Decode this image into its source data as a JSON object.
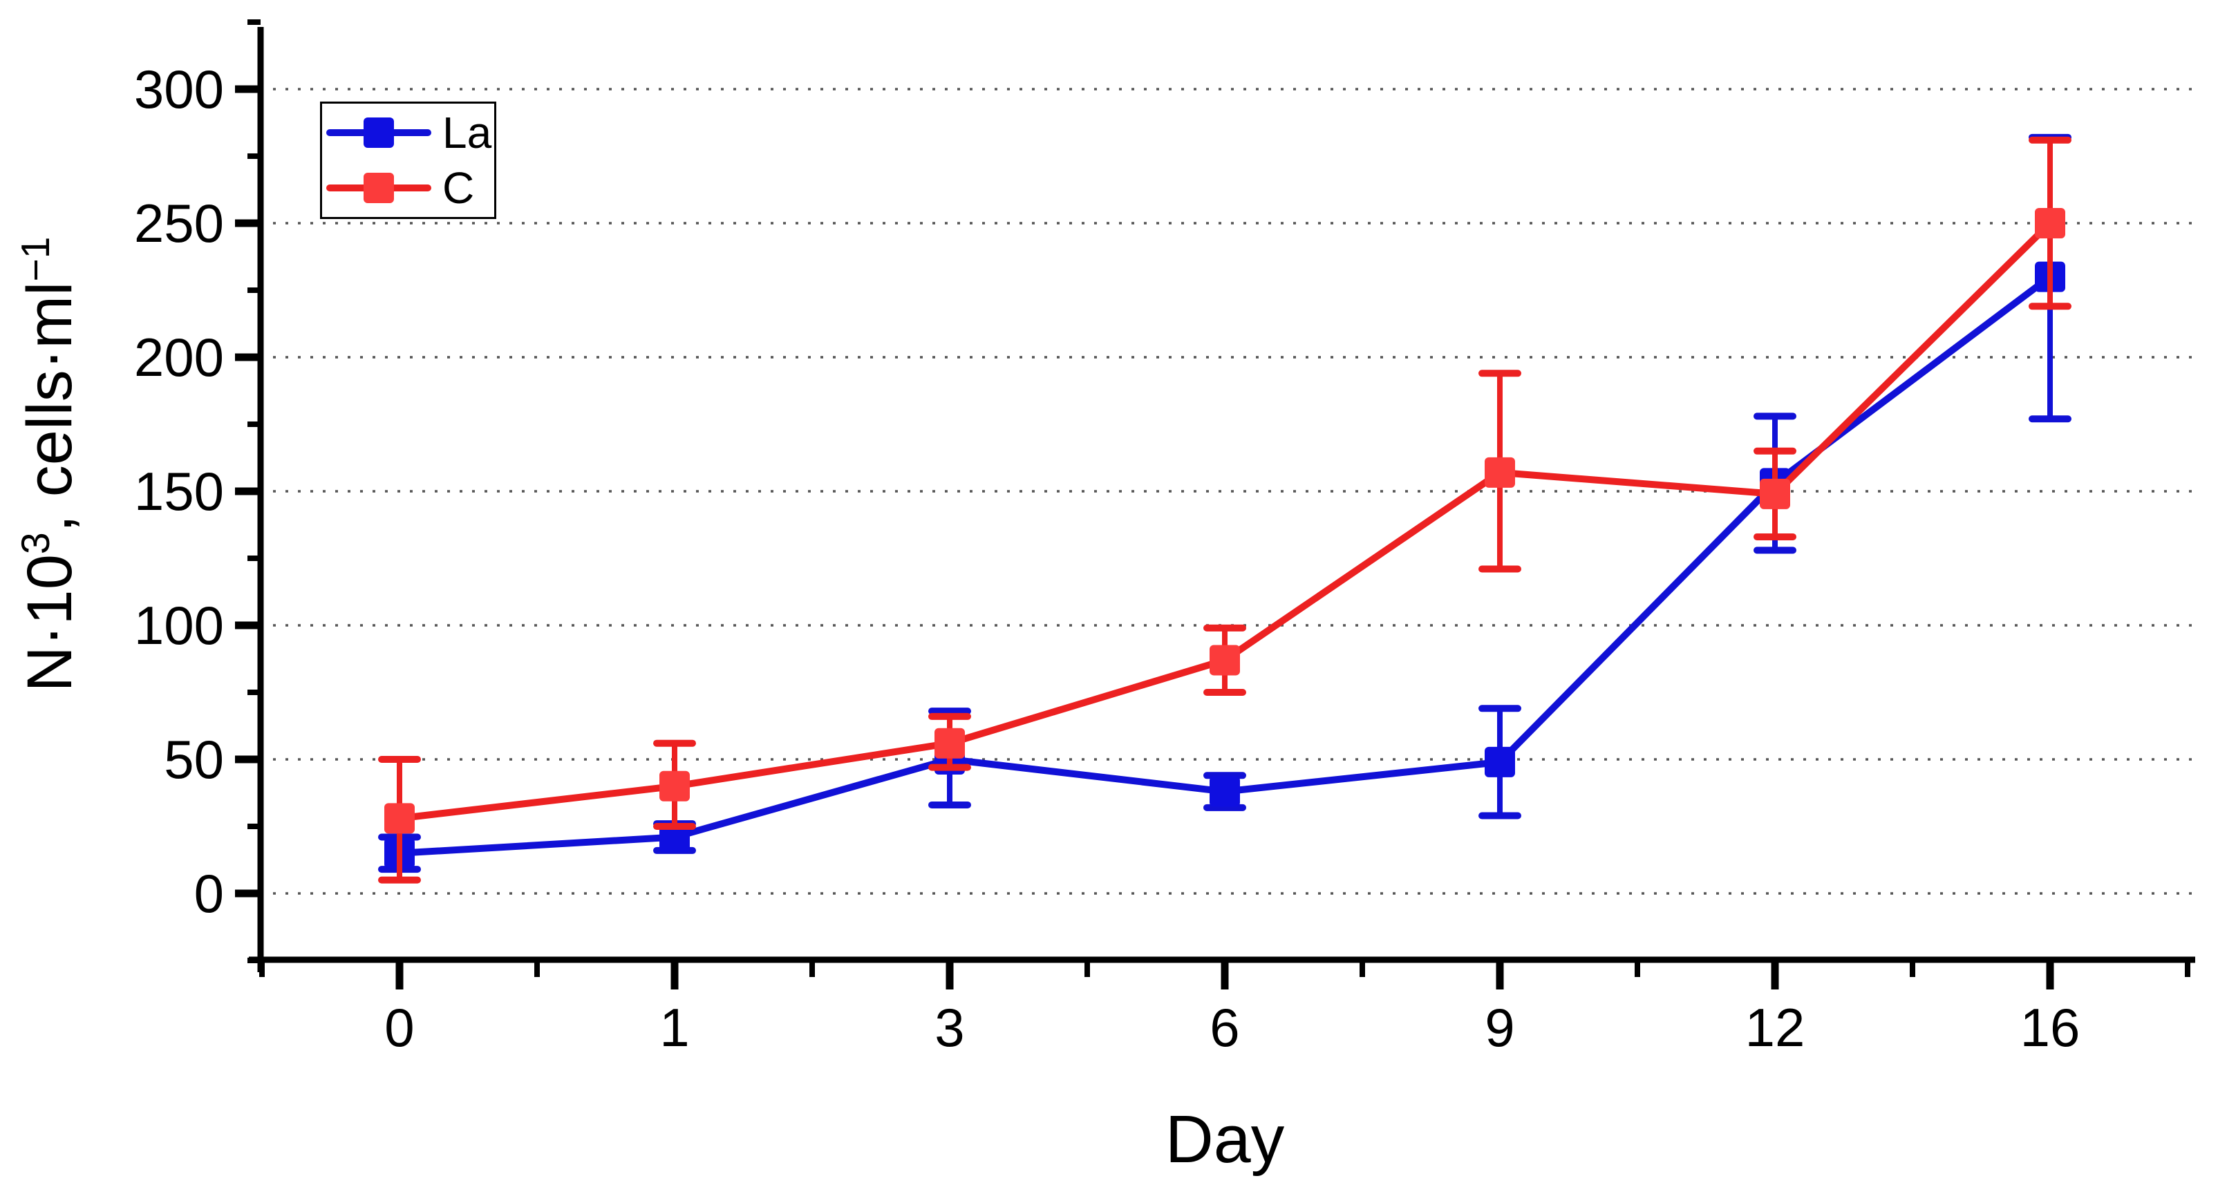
{
  "chart_data": {
    "type": "line",
    "title": "",
    "xlabel": "Day",
    "ylabel": "N·10³, cells·ml⁻¹",
    "ylabel_parts": {
      "base1": "N·10",
      "sup1": "3",
      "base2": ", cells·ml",
      "sup2": "−1"
    },
    "categories": [
      0,
      1,
      3,
      6,
      9,
      12,
      16
    ],
    "x_tick_labels": [
      "0",
      "1",
      "3",
      "6",
      "9",
      "12",
      "16"
    ],
    "y_ticks": [
      0,
      50,
      100,
      150,
      200,
      250,
      300
    ],
    "y_minor_ticks": [
      -25,
      25,
      75,
      125,
      175,
      225,
      275,
      325
    ],
    "ylim": [
      -29,
      325
    ],
    "grid": "horizontal-dotted",
    "grid_color": "#555555",
    "axis_color": "#000000",
    "legend_position": "top-left-inside",
    "series": [
      {
        "name": "La",
        "color": "#1111D6",
        "marker_color": "#0F0FE0",
        "marker": "square",
        "values": [
          15,
          21,
          50,
          38,
          49,
          153,
          230
        ],
        "err_up": [
          6,
          5,
          18,
          6,
          20,
          25,
          52
        ],
        "err_down": [
          6,
          5,
          17,
          6,
          20,
          25,
          53
        ]
      },
      {
        "name": "C",
        "color": "#EC2121",
        "marker_color": "#FB3B3B",
        "marker": "square",
        "values": [
          28,
          40,
          56,
          87,
          157,
          149,
          250
        ],
        "err_up": [
          22,
          16,
          10,
          12,
          37,
          16,
          31
        ],
        "err_down": [
          23,
          15,
          9,
          12,
          36,
          16,
          31
        ]
      }
    ]
  }
}
